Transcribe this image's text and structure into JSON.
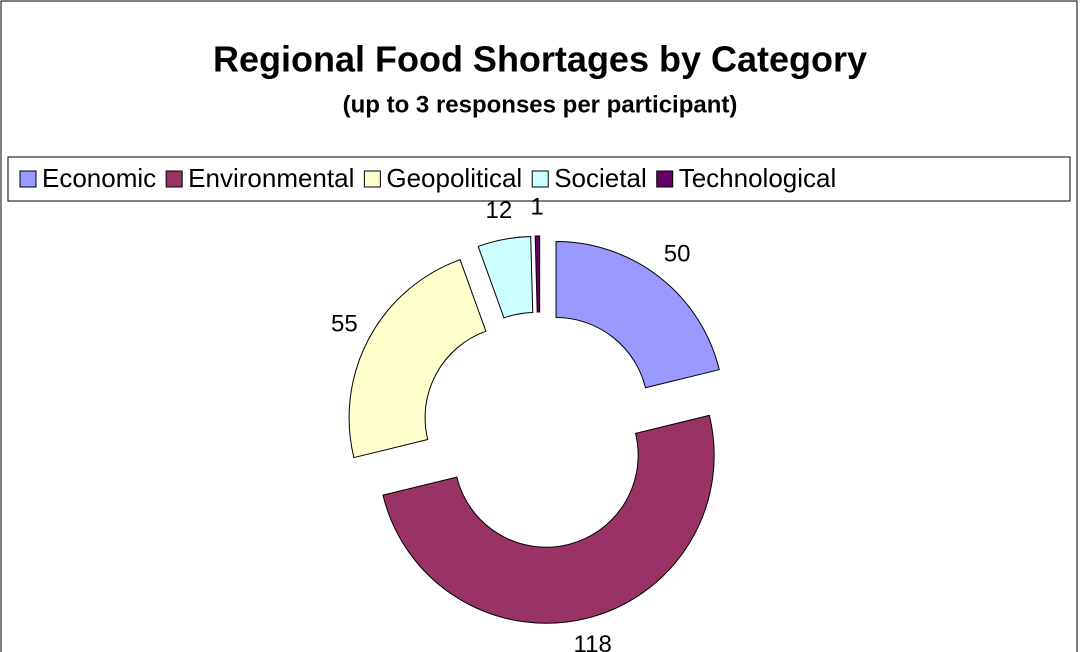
{
  "chart_data": {
    "type": "donut",
    "title": "Regional Food Shortages by Category",
    "subtitle": "(up to 3 responses per participant)",
    "categories": [
      "Economic",
      "Environmental",
      "Geopolitical",
      "Societal",
      "Technological"
    ],
    "values": [
      50,
      118,
      55,
      12,
      1
    ],
    "colors": [
      "#9999ff",
      "#993366",
      "#ffffcc",
      "#ccffff",
      "#660066"
    ],
    "legend": "top"
  }
}
